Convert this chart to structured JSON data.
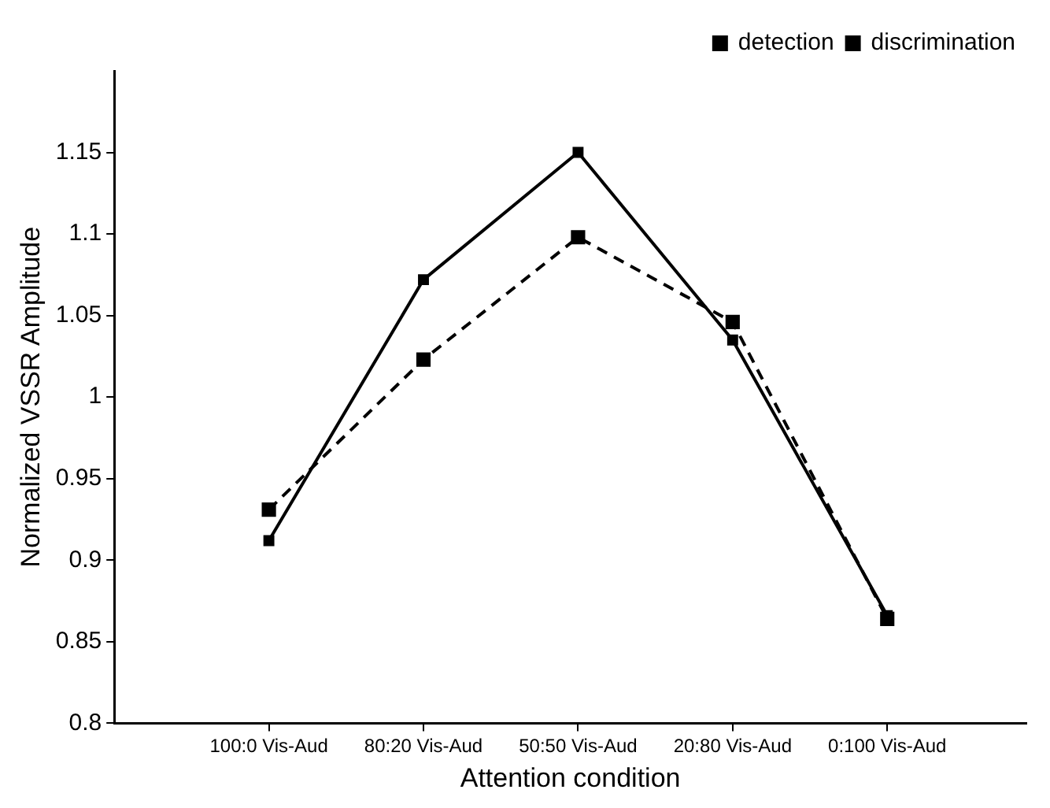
{
  "chart_data": {
    "type": "line",
    "xlabel": "Attention condition",
    "ylabel": "Normalized VSSR Amplitude",
    "categories": [
      "100:0 Vis-Aud",
      "80:20 Vis-Aud",
      "50:50 Vis-Aud",
      "20:80 Vis-Aud",
      "0:100 Vis-Aud"
    ],
    "series": [
      {
        "name": "detection",
        "color": "#000000",
        "values": [
          0.912,
          1.072,
          1.15,
          1.035,
          0.866
        ],
        "line_style": "solid"
      },
      {
        "name": "discrimination",
        "color": "#000000",
        "values": [
          0.931,
          1.023,
          1.098,
          1.046,
          0.864
        ],
        "line_style": "dashed"
      }
    ],
    "ylim": [
      0.8,
      1.2
    ],
    "yticks": [
      0.8,
      0.85,
      0.9,
      0.95,
      1,
      1.05,
      1.1,
      1.15
    ],
    "grid": false,
    "legend": "top right",
    "marker": "square"
  }
}
